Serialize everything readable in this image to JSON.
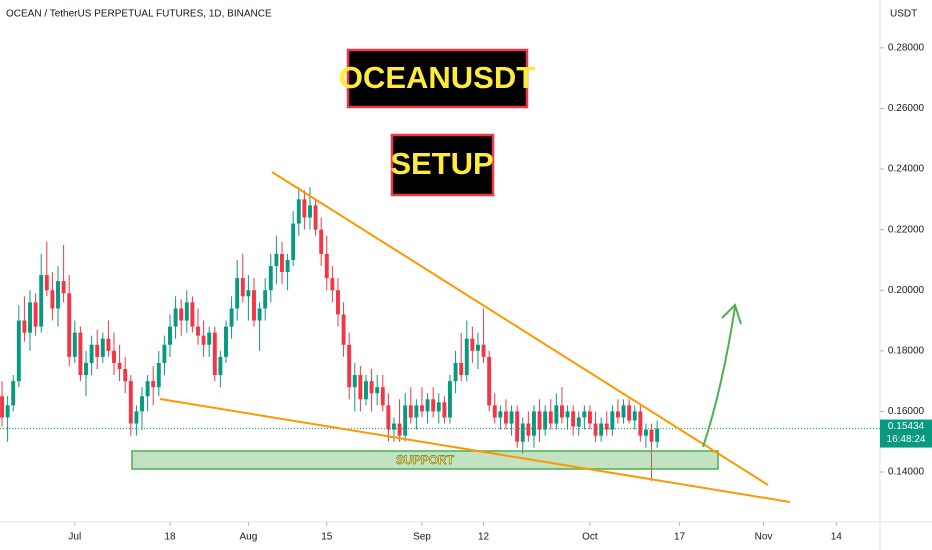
{
  "chart_data": {
    "type": "candlestick",
    "title": "OCEAN / TetherUS PERPETUAL FUTURES, 1D, BINANCE",
    "y_axis_unit": "USDT",
    "up_color": "#089981",
    "down_color": "#f23645",
    "grid": false,
    "ylim": [
      0.1235,
      0.2958
    ],
    "yticks": [
      {
        "value": 0.14,
        "label": "0.14000"
      },
      {
        "value": 0.16,
        "label": "0.16000"
      },
      {
        "value": 0.18,
        "label": "0.18000"
      },
      {
        "value": 0.2,
        "label": "0.20000"
      },
      {
        "value": 0.22,
        "label": "0.22000"
      },
      {
        "value": 0.24,
        "label": "0.24000"
      },
      {
        "value": 0.26,
        "label": "0.26000"
      },
      {
        "value": 0.28,
        "label": "0.28000"
      }
    ],
    "xlim": [
      -0.36,
      156.8
    ],
    "xticks": [
      {
        "value": 13,
        "label": "Jul"
      },
      {
        "value": 30,
        "label": "18"
      },
      {
        "value": 44,
        "label": "Aug"
      },
      {
        "value": 58,
        "label": "15"
      },
      {
        "value": 75,
        "label": "Sep"
      },
      {
        "value": 86,
        "label": "12"
      },
      {
        "value": 105,
        "label": "Oct"
      },
      {
        "value": 121,
        "label": "17"
      },
      {
        "value": 136,
        "label": "Nov"
      },
      {
        "value": 149,
        "label": "14"
      }
    ],
    "countdown": "16:48:24",
    "annotations": {
      "headline": "OCEANUSDT",
      "setup": "SETUP",
      "support": "SUPPORT"
    },
    "ohlc": [
      [
        0.165,
        0.17,
        0.155,
        0.158
      ],
      [
        0.158,
        0.165,
        0.15,
        0.162
      ],
      [
        0.162,
        0.172,
        0.16,
        0.17
      ],
      [
        0.17,
        0.195,
        0.168,
        0.19
      ],
      [
        0.19,
        0.198,
        0.183,
        0.186
      ],
      [
        0.186,
        0.2,
        0.18,
        0.196
      ],
      [
        0.196,
        0.199,
        0.185,
        0.188
      ],
      [
        0.188,
        0.212,
        0.186,
        0.205
      ],
      [
        0.205,
        0.216,
        0.198,
        0.2
      ],
      [
        0.2,
        0.206,
        0.19,
        0.194
      ],
      [
        0.194,
        0.208,
        0.188,
        0.203
      ],
      [
        0.203,
        0.215,
        0.196,
        0.199
      ],
      [
        0.199,
        0.205,
        0.175,
        0.178
      ],
      [
        0.178,
        0.19,
        0.176,
        0.186
      ],
      [
        0.186,
        0.188,
        0.17,
        0.172
      ],
      [
        0.172,
        0.18,
        0.165,
        0.176
      ],
      [
        0.176,
        0.185,
        0.172,
        0.182
      ],
      [
        0.182,
        0.187,
        0.174,
        0.178
      ],
      [
        0.178,
        0.186,
        0.176,
        0.184
      ],
      [
        0.184,
        0.19,
        0.178,
        0.18
      ],
      [
        0.18,
        0.186,
        0.172,
        0.176
      ],
      [
        0.176,
        0.182,
        0.17,
        0.174
      ],
      [
        0.174,
        0.178,
        0.166,
        0.17
      ],
      [
        0.17,
        0.172,
        0.152,
        0.156
      ],
      [
        0.156,
        0.162,
        0.152,
        0.16
      ],
      [
        0.16,
        0.168,
        0.154,
        0.165
      ],
      [
        0.165,
        0.172,
        0.16,
        0.17
      ],
      [
        0.17,
        0.175,
        0.162,
        0.168
      ],
      [
        0.168,
        0.18,
        0.165,
        0.176
      ],
      [
        0.176,
        0.185,
        0.172,
        0.182
      ],
      [
        0.182,
        0.192,
        0.178,
        0.188
      ],
      [
        0.188,
        0.198,
        0.184,
        0.194
      ],
      [
        0.194,
        0.197,
        0.185,
        0.19
      ],
      [
        0.19,
        0.2,
        0.186,
        0.196
      ],
      [
        0.196,
        0.198,
        0.186,
        0.188
      ],
      [
        0.188,
        0.194,
        0.182,
        0.185
      ],
      [
        0.185,
        0.19,
        0.178,
        0.182
      ],
      [
        0.182,
        0.188,
        0.178,
        0.186
      ],
      [
        0.186,
        0.188,
        0.17,
        0.172
      ],
      [
        0.172,
        0.18,
        0.168,
        0.178
      ],
      [
        0.178,
        0.19,
        0.176,
        0.188
      ],
      [
        0.188,
        0.198,
        0.184,
        0.194
      ],
      [
        0.194,
        0.21,
        0.19,
        0.204
      ],
      [
        0.204,
        0.212,
        0.196,
        0.198
      ],
      [
        0.198,
        0.205,
        0.19,
        0.2
      ],
      [
        0.2,
        0.204,
        0.188,
        0.19
      ],
      [
        0.19,
        0.196,
        0.18,
        0.194
      ],
      [
        0.194,
        0.204,
        0.19,
        0.2
      ],
      [
        0.2,
        0.212,
        0.196,
        0.208
      ],
      [
        0.208,
        0.218,
        0.202,
        0.212
      ],
      [
        0.212,
        0.216,
        0.202,
        0.206
      ],
      [
        0.206,
        0.212,
        0.2,
        0.21
      ],
      [
        0.21,
        0.226,
        0.208,
        0.222
      ],
      [
        0.222,
        0.234,
        0.218,
        0.23
      ],
      [
        0.23,
        0.233,
        0.22,
        0.224
      ],
      [
        0.224,
        0.234,
        0.22,
        0.228
      ],
      [
        0.228,
        0.23,
        0.218,
        0.22
      ],
      [
        0.22,
        0.224,
        0.208,
        0.212
      ],
      [
        0.212,
        0.218,
        0.2,
        0.204
      ],
      [
        0.204,
        0.208,
        0.196,
        0.2
      ],
      [
        0.2,
        0.204,
        0.188,
        0.192
      ],
      [
        0.192,
        0.196,
        0.178,
        0.182
      ],
      [
        0.182,
        0.186,
        0.164,
        0.168
      ],
      [
        0.168,
        0.176,
        0.16,
        0.172
      ],
      [
        0.172,
        0.175,
        0.16,
        0.164
      ],
      [
        0.164,
        0.172,
        0.162,
        0.17
      ],
      [
        0.17,
        0.174,
        0.16,
        0.166
      ],
      [
        0.166,
        0.172,
        0.162,
        0.168
      ],
      [
        0.168,
        0.172,
        0.16,
        0.162
      ],
      [
        0.162,
        0.166,
        0.15,
        0.154
      ],
      [
        0.154,
        0.158,
        0.15,
        0.156
      ],
      [
        0.156,
        0.164,
        0.15,
        0.152
      ],
      [
        0.152,
        0.166,
        0.15,
        0.162
      ],
      [
        0.162,
        0.168,
        0.156,
        0.158
      ],
      [
        0.158,
        0.164,
        0.154,
        0.162
      ],
      [
        0.162,
        0.168,
        0.158,
        0.16
      ],
      [
        0.16,
        0.166,
        0.156,
        0.164
      ],
      [
        0.164,
        0.168,
        0.158,
        0.16
      ],
      [
        0.16,
        0.166,
        0.156,
        0.163
      ],
      [
        0.163,
        0.165,
        0.156,
        0.158
      ],
      [
        0.158,
        0.172,
        0.156,
        0.17
      ],
      [
        0.17,
        0.18,
        0.166,
        0.176
      ],
      [
        0.176,
        0.186,
        0.17,
        0.172
      ],
      [
        0.172,
        0.19,
        0.17,
        0.184
      ],
      [
        0.184,
        0.188,
        0.176,
        0.18
      ],
      [
        0.18,
        0.186,
        0.174,
        0.182
      ],
      [
        0.182,
        0.194,
        0.176,
        0.178
      ],
      [
        0.178,
        0.18,
        0.16,
        0.162
      ],
      [
        0.162,
        0.166,
        0.156,
        0.158
      ],
      [
        0.158,
        0.162,
        0.154,
        0.16
      ],
      [
        0.16,
        0.164,
        0.154,
        0.156
      ],
      [
        0.156,
        0.162,
        0.152,
        0.16
      ],
      [
        0.16,
        0.162,
        0.148,
        0.15
      ],
      [
        0.15,
        0.158,
        0.146,
        0.156
      ],
      [
        0.156,
        0.16,
        0.15,
        0.152
      ],
      [
        0.152,
        0.162,
        0.148,
        0.16
      ],
      [
        0.16,
        0.164,
        0.15,
        0.154
      ],
      [
        0.154,
        0.162,
        0.152,
        0.16
      ],
      [
        0.16,
        0.164,
        0.154,
        0.156
      ],
      [
        0.156,
        0.166,
        0.154,
        0.162
      ],
      [
        0.162,
        0.168,
        0.156,
        0.158
      ],
      [
        0.158,
        0.162,
        0.154,
        0.16
      ],
      [
        0.16,
        0.162,
        0.152,
        0.155
      ],
      [
        0.155,
        0.16,
        0.152,
        0.158
      ],
      [
        0.158,
        0.162,
        0.154,
        0.16
      ],
      [
        0.16,
        0.162,
        0.154,
        0.156
      ],
      [
        0.156,
        0.16,
        0.15,
        0.152
      ],
      [
        0.152,
        0.158,
        0.15,
        0.156
      ],
      [
        0.156,
        0.16,
        0.152,
        0.154
      ],
      [
        0.154,
        0.162,
        0.152,
        0.16
      ],
      [
        0.16,
        0.164,
        0.156,
        0.158
      ],
      [
        0.158,
        0.164,
        0.156,
        0.162
      ],
      [
        0.162,
        0.164,
        0.156,
        0.157
      ],
      [
        0.157,
        0.162,
        0.154,
        0.16
      ],
      [
        0.16,
        0.162,
        0.15,
        0.152
      ],
      [
        0.152,
        0.156,
        0.148,
        0.154
      ],
      [
        0.154,
        0.156,
        0.137,
        0.15
      ],
      [
        0.15,
        0.157,
        0.148,
        0.15434
      ]
    ]
  }
}
